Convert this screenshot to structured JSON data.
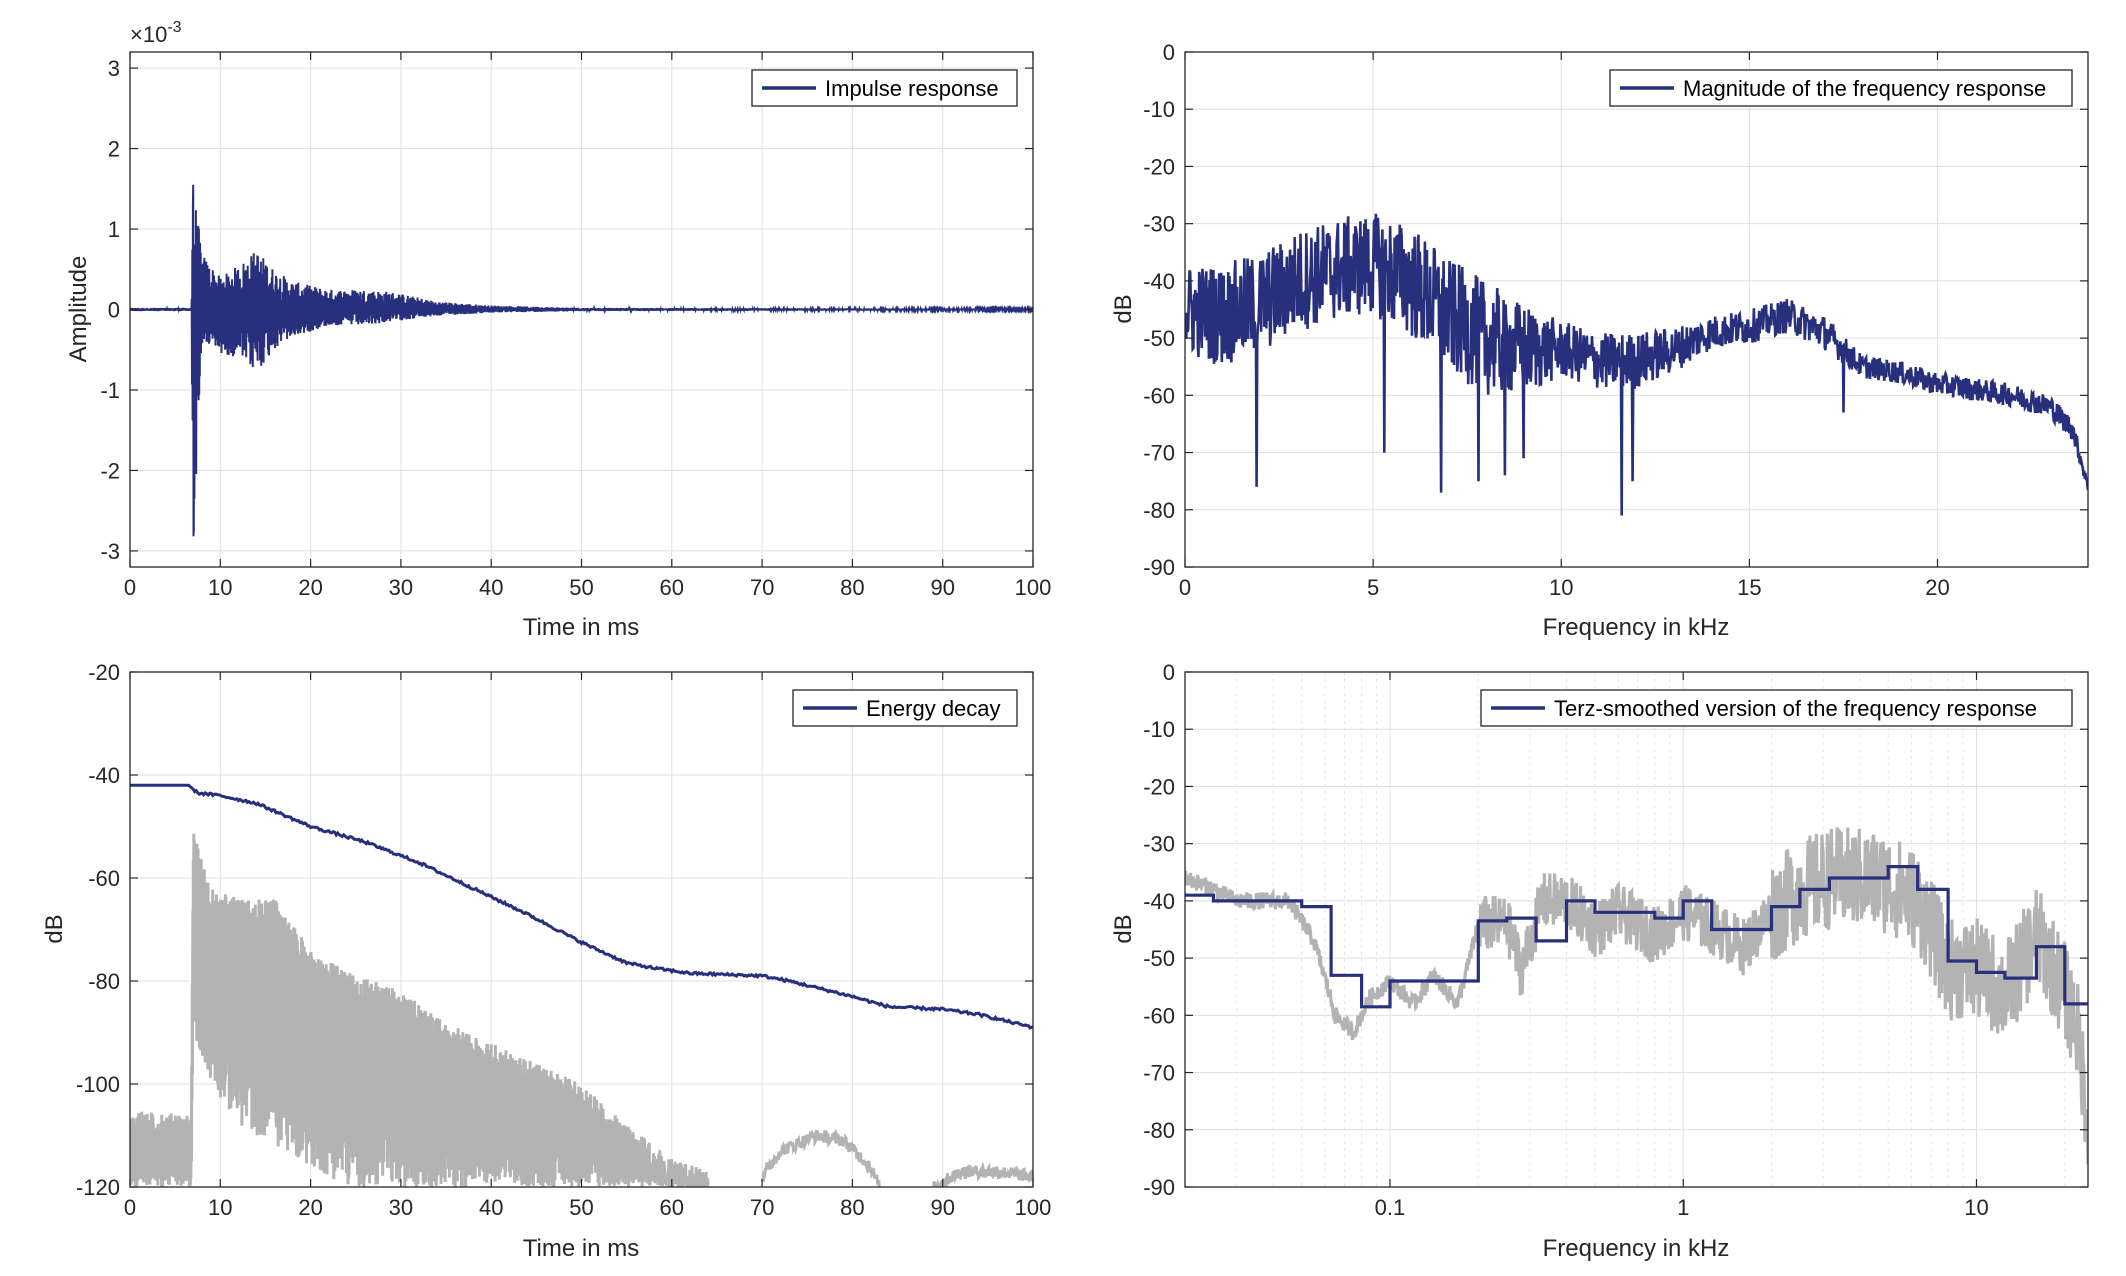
{
  "colors": {
    "series": "#28307e",
    "gray": "#b3b3b3",
    "axis": "#262626",
    "grid": "#dfdfdf"
  },
  "chart_data": [
    {
      "id": "impulse",
      "type": "line",
      "legend": [
        "Impulse response"
      ],
      "legend_location": "top-right",
      "xlabel": "Time in ms",
      "ylabel": "Amplitude",
      "exponent_label": "×10",
      "exponent": "-3",
      "xlim": [
        0,
        100
      ],
      "ylim": [
        -3.2,
        3.2
      ],
      "xticks": [
        0,
        10,
        20,
        30,
        40,
        50,
        60,
        70,
        80,
        90,
        100
      ],
      "yticks": [
        -3,
        -2,
        -1,
        0,
        1,
        2,
        3
      ],
      "grid": true,
      "series": [
        {
          "name": "Impulse response",
          "envelope_points_ms_max_min": [
            [
              0,
              0.02,
              -0.02
            ],
            [
              6.8,
              0.02,
              -0.02
            ],
            [
              7.0,
              1.55,
              -2.9
            ],
            [
              8.0,
              0.7,
              -0.45
            ],
            [
              10.0,
              0.4,
              -0.55
            ],
            [
              12.0,
              0.55,
              -0.6
            ],
            [
              14.0,
              0.75,
              -0.8
            ],
            [
              16.0,
              0.5,
              -0.5
            ],
            [
              18.0,
              0.35,
              -0.35
            ],
            [
              22.0,
              0.25,
              -0.2
            ],
            [
              26.0,
              0.25,
              -0.2
            ],
            [
              29.0,
              0.22,
              -0.15
            ],
            [
              34.0,
              0.1,
              -0.08
            ],
            [
              40.0,
              0.05,
              -0.04
            ],
            [
              50.0,
              0.02,
              -0.02
            ],
            [
              100.0,
              0.01,
              -0.01
            ]
          ]
        }
      ]
    },
    {
      "id": "magnitude",
      "type": "line",
      "legend": [
        "Magnitude of the frequency response"
      ],
      "legend_location": "top-right",
      "xlabel": "Frequency in kHz",
      "ylabel": "dB",
      "xlim": [
        0,
        24
      ],
      "ylim": [
        -90,
        0
      ],
      "xticks": [
        0,
        5,
        10,
        15,
        20
      ],
      "yticks": [
        0,
        -10,
        -20,
        -30,
        -40,
        -50,
        -60,
        -70,
        -80,
        -90
      ],
      "grid": true,
      "series": [
        {
          "name": "Magnitude of the frequency response",
          "trend_khz_db_spread": [
            [
              0.0,
              -45,
              8
            ],
            [
              1.0,
              -46,
              9
            ],
            [
              2.0,
              -44,
              9
            ],
            [
              3.0,
              -40,
              9
            ],
            [
              4.0,
              -38,
              9
            ],
            [
              5.0,
              -37,
              9
            ],
            [
              6.0,
              -40,
              10
            ],
            [
              7.0,
              -46,
              10
            ],
            [
              8.0,
              -50,
              10
            ],
            [
              9.0,
              -52,
              8
            ],
            [
              10.0,
              -52,
              5
            ],
            [
              11.0,
              -54,
              5
            ],
            [
              12.0,
              -54,
              5
            ],
            [
              13.0,
              -52,
              4
            ],
            [
              14.0,
              -49,
              3
            ],
            [
              15.0,
              -48,
              3
            ],
            [
              16.0,
              -46,
              3
            ],
            [
              17.0,
              -49,
              3
            ],
            [
              18.0,
              -55,
              2
            ],
            [
              19.0,
              -56,
              2
            ],
            [
              20.0,
              -58,
              2
            ],
            [
              21.0,
              -59,
              2
            ],
            [
              22.0,
              -60,
              2
            ],
            [
              23.0,
              -62,
              2
            ],
            [
              23.6,
              -66,
              2
            ],
            [
              24.0,
              -76,
              1
            ]
          ],
          "deep_notches_khz_db": [
            [
              1.9,
              -76
            ],
            [
              5.3,
              -70
            ],
            [
              6.8,
              -77
            ],
            [
              7.8,
              -75
            ],
            [
              8.5,
              -74
            ],
            [
              9.0,
              -71
            ],
            [
              11.6,
              -81
            ],
            [
              11.9,
              -75
            ],
            [
              17.5,
              -63
            ]
          ]
        }
      ]
    },
    {
      "id": "energy",
      "type": "line",
      "legend": [
        "Energy decay"
      ],
      "legend_location": "top-right",
      "xlabel": "Time in ms",
      "ylabel": "dB",
      "xlim": [
        0,
        100
      ],
      "ylim": [
        -120,
        -20
      ],
      "xticks": [
        0,
        10,
        20,
        30,
        40,
        50,
        60,
        70,
        80,
        90,
        100
      ],
      "yticks": [
        -20,
        -40,
        -60,
        -80,
        -100,
        -120
      ],
      "grid": true,
      "series": [
        {
          "name": "Energy decay",
          "points": [
            [
              0,
              -42
            ],
            [
              6.5,
              -42
            ],
            [
              7.5,
              -43.5
            ],
            [
              10,
              -44
            ],
            [
              14,
              -45.5
            ],
            [
              20,
              -50
            ],
            [
              26,
              -53
            ],
            [
              32,
              -57
            ],
            [
              38,
              -62
            ],
            [
              44,
              -67
            ],
            [
              50,
              -72.5
            ],
            [
              55,
              -76.5
            ],
            [
              58,
              -77.5
            ],
            [
              62,
              -78.5
            ],
            [
              70,
              -79
            ],
            [
              73,
              -80
            ],
            [
              80,
              -83
            ],
            [
              84,
              -85
            ],
            [
              90,
              -85.5
            ],
            [
              94,
              -86.5
            ],
            [
              100,
              -89
            ]
          ]
        },
        {
          "name": "",
          "envelope_points_ms_top_bottom": [
            [
              0,
              -105,
              -120
            ],
            [
              6.8,
              -106,
              -120
            ],
            [
              7.0,
              -51,
              -90
            ],
            [
              9.0,
              -62,
              -100
            ],
            [
              12.0,
              -64,
              -108
            ],
            [
              16.0,
              -64,
              -112
            ],
            [
              20.0,
              -74,
              -116
            ],
            [
              24.0,
              -78,
              -120
            ],
            [
              30.0,
              -82,
              -120
            ],
            [
              35.0,
              -88,
              -120
            ],
            [
              40.0,
              -92,
              -120
            ],
            [
              45.0,
              -96,
              -120
            ],
            [
              50.0,
              -100,
              -120
            ],
            [
              55.0,
              -108,
              -120
            ],
            [
              60.0,
              -114,
              -120
            ],
            [
              64.0,
              -117,
              -120
            ]
          ],
          "late_humps_ms_db": [
            [
              [
                70,
                -118
              ],
              [
                72,
                -113
              ],
              [
                76,
                -110
              ],
              [
                79,
                -111
              ],
              [
                82,
                -116
              ],
              [
                83,
                -120
              ]
            ],
            [
              [
                89,
                -120
              ],
              [
                92,
                -117
              ],
              [
                96,
                -117
              ],
              [
                100,
                -118
              ]
            ]
          ]
        }
      ]
    },
    {
      "id": "terz",
      "type": "line",
      "legend": [
        "Terz-smoothed version of the frequency response"
      ],
      "legend_location": "top-right",
      "xlabel": "Frequency in kHz",
      "ylabel": "dB",
      "xscale": "log",
      "xlim": [
        0.02,
        24
      ],
      "ylim": [
        -90,
        0
      ],
      "xticks": [
        0.1,
        1,
        10
      ],
      "xticklabels": [
        "0.1",
        "1",
        "10"
      ],
      "yticks": [
        0,
        -10,
        -20,
        -30,
        -40,
        -50,
        -60,
        -70,
        -80,
        -90
      ],
      "grid": true,
      "series": [
        {
          "name": "Terz-smoothed version of the frequency response",
          "step_edges_khz": [
            0.02,
            0.025,
            0.032,
            0.04,
            0.05,
            0.063,
            0.08,
            0.1,
            0.125,
            0.16,
            0.2,
            0.25,
            0.315,
            0.4,
            0.5,
            0.63,
            0.8,
            1.0,
            1.25,
            1.6,
            2.0,
            2.5,
            3.15,
            4.0,
            5.0,
            6.3,
            8.0,
            10.0,
            12.5,
            16.0,
            20.0,
            24.0
          ],
          "step_values_db": [
            -39,
            -40,
            -40,
            -40,
            -41,
            -53,
            -58.5,
            -54,
            -54,
            -54,
            -43.5,
            -43,
            -47,
            -40,
            -42,
            -42,
            -43,
            -40,
            -45,
            -45,
            -41,
            -38,
            -36,
            -36,
            -34,
            -38,
            -50.5,
            -52.5,
            -53.5,
            -48,
            -58
          ]
        },
        {
          "name": "",
          "trend_khz_db": [
            [
              0.02,
              -36
            ],
            [
              0.03,
              -40
            ],
            [
              0.045,
              -40
            ],
            [
              0.055,
              -47
            ],
            [
              0.065,
              -60
            ],
            [
              0.075,
              -63
            ],
            [
              0.085,
              -57
            ],
            [
              0.1,
              -54
            ],
            [
              0.12,
              -58
            ],
            [
              0.14,
              -53
            ],
            [
              0.17,
              -58
            ],
            [
              0.2,
              -44
            ],
            [
              0.25,
              -44
            ],
            [
              0.28,
              -52
            ],
            [
              0.33,
              -40
            ],
            [
              0.4,
              -40
            ],
            [
              0.5,
              -45
            ],
            [
              0.6,
              -42
            ],
            [
              0.8,
              -46
            ],
            [
              1.0,
              -42
            ],
            [
              1.3,
              -45
            ],
            [
              1.6,
              -48
            ],
            [
              2.0,
              -42
            ],
            [
              2.5,
              -38
            ],
            [
              3.15,
              -36
            ],
            [
              4.0,
              -36
            ],
            [
              5.0,
              -37
            ],
            [
              6.3,
              -40
            ],
            [
              8.0,
              -52
            ],
            [
              10.0,
              -52
            ],
            [
              12.5,
              -56
            ],
            [
              16.0,
              -46
            ],
            [
              20.0,
              -56
            ],
            [
              22.0,
              -62
            ],
            [
              24.0,
              -78
            ]
          ]
        }
      ]
    }
  ]
}
